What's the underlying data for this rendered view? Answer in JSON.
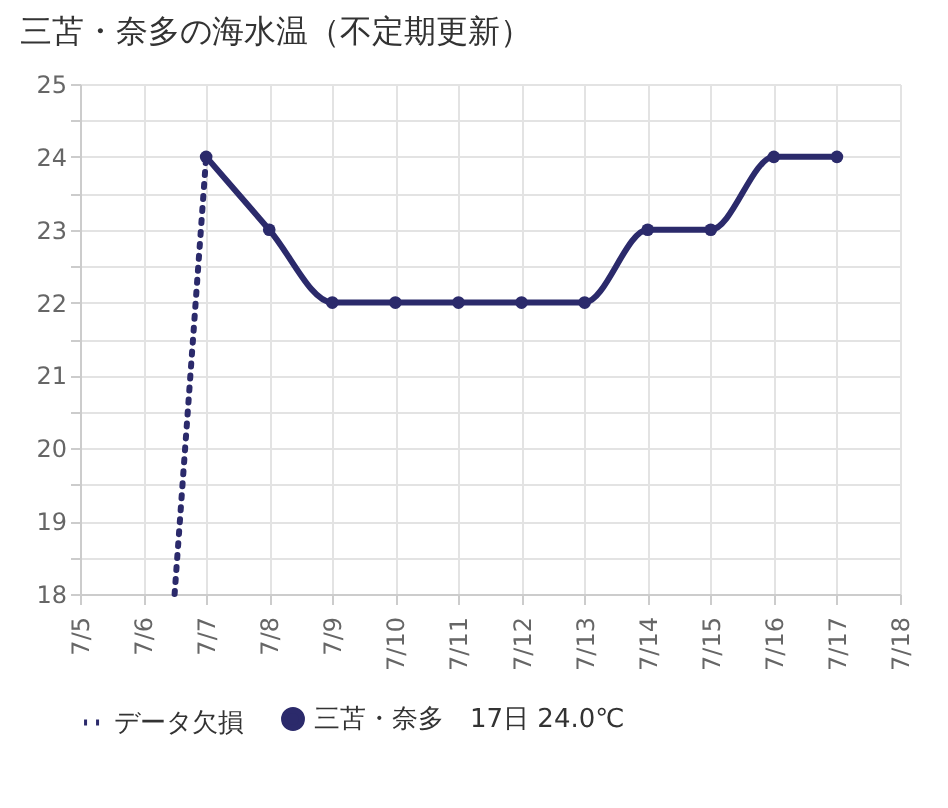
{
  "chart_data": {
    "type": "line",
    "title": "三苫・奈多の海水温（不定期更新）",
    "xlim": [
      "--07-05",
      "--07-18"
    ],
    "xticks": [
      {
        "value": "--07-05",
        "label": "7/5"
      },
      {
        "value": "--07-06",
        "label": "7/6"
      },
      {
        "value": "--07-07",
        "label": "7/7"
      },
      {
        "value": "--07-08",
        "label": "7/8"
      },
      {
        "value": "--07-09",
        "label": "7/9"
      },
      {
        "value": "--07-10",
        "label": "7/10"
      },
      {
        "value": "--07-11",
        "label": "7/11"
      },
      {
        "value": "--07-12",
        "label": "7/12"
      },
      {
        "value": "--07-13",
        "label": "7/13"
      },
      {
        "value": "--07-14",
        "label": "7/14"
      },
      {
        "value": "--07-15",
        "label": "7/15"
      },
      {
        "value": "--07-16",
        "label": "7/16"
      },
      {
        "value": "--07-17",
        "label": "7/17"
      },
      {
        "value": "--07-18",
        "label": "7/18"
      }
    ],
    "ylim": [
      18,
      25
    ],
    "yticks": [
      18,
      {
        "value": 18.5,
        "label": null
      },
      19,
      {
        "value": 19.5,
        "label": null
      },
      20,
      {
        "value": 20.5,
        "label": null
      },
      21,
      {
        "value": 21.5,
        "label": null
      },
      22,
      {
        "value": 22.5,
        "label": null
      },
      23,
      {
        "value": 23.5,
        "label": null
      },
      24,
      {
        "value": 24.5,
        "label": null
      },
      25
    ],
    "grid": true,
    "legend": "bottom",
    "series": [
      {
        "name": "データ欠損",
        "color": "#2b2a6b",
        "line_style": "dotted",
        "x": [
          "--07-06T12:00",
          "--07-07"
        ],
        "values": [
          18,
          24
        ]
      },
      {
        "name": "三苫・奈多　17日 24.0℃",
        "color": "#2b2a6b",
        "line_style": "solid",
        "marker": "circle",
        "x": [
          "--07-07",
          "--07-08",
          "--07-09",
          "--07-10",
          "--07-11",
          "--07-12",
          "--07-13",
          "--07-14",
          "--07-15",
          "--07-16",
          "--07-17"
        ],
        "values": [
          24,
          23,
          22,
          22,
          22,
          22,
          22,
          23,
          23,
          24,
          24
        ]
      }
    ]
  }
}
